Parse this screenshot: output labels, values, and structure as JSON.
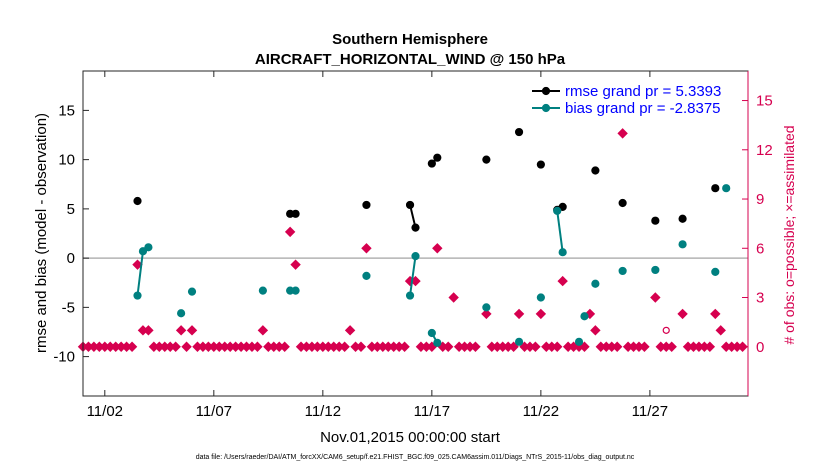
{
  "chart_data": {
    "type": "scatter",
    "title": "Southern Hemisphere",
    "subtitle": "AIRCRAFT_HORIZONTAL_WIND @ 150 hPa",
    "xlabel": "Nov.01,2015 00:00:00 start",
    "ylabel": "rmse and bias (model - observation)",
    "y2label": "# of obs: o=possible; ×=assimilated",
    "footnote": "data file: /Users/raeder/DAI/ATM_forcXX/CAM6_setup/f.e21.FHIST_BGC.f09_025.CAM6assim.011/Diags_NTrS_2015-11/obs_diag_output.nc",
    "xlim": [
      1,
      31.5
    ],
    "ylim": [
      -14,
      19
    ],
    "y2lim": [
      -3,
      16.8
    ],
    "x_tick_labels": [
      "11/02",
      "11/07",
      "11/12",
      "11/17",
      "11/22",
      "11/27"
    ],
    "x_tick_values": [
      2,
      7,
      12,
      17,
      22,
      27
    ],
    "y_tick_values": [
      -10,
      -5,
      0,
      5,
      10,
      15
    ],
    "y2_tick_values": [
      0,
      3,
      6,
      9,
      12,
      15
    ],
    "grid": false,
    "legend_position": "top-right",
    "colors": {
      "rmse": "#000000",
      "bias": "#008080",
      "obs": "#d6004f",
      "zero_line": "#b3b3b3"
    },
    "series": [
      {
        "name": "rmse grand pr = 5.3393",
        "role": "rmse",
        "segments": [
          [
            [
              3.5,
              5.8
            ]
          ],
          [
            [
              10.5,
              4.5
            ],
            [
              10.75,
              4.5
            ]
          ],
          [
            [
              14.0,
              5.4
            ]
          ],
          [
            [
              16.0,
              5.4
            ],
            [
              16.25,
              3.1
            ]
          ],
          [
            [
              17.0,
              9.6
            ],
            [
              17.25,
              10.2
            ]
          ],
          [
            [
              19.5,
              10.0
            ]
          ],
          [
            [
              21.0,
              12.8
            ]
          ],
          [
            [
              22.0,
              9.5
            ]
          ],
          [
            [
              22.75,
              4.9
            ],
            [
              23.0,
              5.2
            ]
          ],
          [
            [
              24.5,
              8.9
            ]
          ],
          [
            [
              25.75,
              5.6
            ]
          ],
          [
            [
              27.25,
              3.8
            ]
          ],
          [
            [
              28.5,
              4.0
            ]
          ],
          [
            [
              30.0,
              7.1
            ]
          ]
        ]
      },
      {
        "name": "bias grand pr = -2.8375",
        "role": "bias",
        "segments": [
          [
            [
              3.5,
              -3.8
            ],
            [
              3.75,
              0.7
            ],
            [
              4.0,
              1.1
            ]
          ],
          [
            [
              5.5,
              -5.6
            ]
          ],
          [
            [
              6.0,
              -3.4
            ]
          ],
          [
            [
              9.25,
              -3.3
            ]
          ],
          [
            [
              10.5,
              -3.3
            ],
            [
              10.75,
              -3.3
            ]
          ],
          [
            [
              14.0,
              -1.8
            ]
          ],
          [
            [
              16.0,
              -3.8
            ],
            [
              16.25,
              0.2
            ]
          ],
          [
            [
              17.0,
              -7.6
            ],
            [
              17.25,
              -8.6
            ]
          ],
          [
            [
              19.5,
              -5.0
            ]
          ],
          [
            [
              21.0,
              -8.5
            ]
          ],
          [
            [
              22.0,
              -4.0
            ]
          ],
          [
            [
              22.75,
              4.8
            ],
            [
              23.0,
              0.6
            ]
          ],
          [
            [
              23.75,
              -8.5
            ]
          ],
          [
            [
              24.0,
              -5.9
            ]
          ],
          [
            [
              24.5,
              -2.6
            ]
          ],
          [
            [
              25.75,
              -1.3
            ]
          ],
          [
            [
              27.25,
              -1.2
            ]
          ],
          [
            [
              28.5,
              1.4
            ]
          ],
          [
            [
              30.0,
              -1.4
            ]
          ],
          [
            [
              30.5,
              7.1
            ]
          ]
        ]
      }
    ],
    "obs_counts": {
      "name": "# of obs",
      "assimilated": [
        [
          1,
          0
        ],
        [
          1.25,
          0
        ],
        [
          1.5,
          0
        ],
        [
          1.75,
          0
        ],
        [
          2,
          0
        ],
        [
          2.25,
          0
        ],
        [
          2.5,
          0
        ],
        [
          2.75,
          0
        ],
        [
          3,
          0
        ],
        [
          3.25,
          0
        ],
        [
          3.5,
          5
        ],
        [
          3.75,
          1
        ],
        [
          4,
          1
        ],
        [
          4.25,
          0
        ],
        [
          4.5,
          0
        ],
        [
          4.75,
          0
        ],
        [
          5,
          0
        ],
        [
          5.25,
          0
        ],
        [
          5.5,
          1
        ],
        [
          5.75,
          0
        ],
        [
          6,
          1
        ],
        [
          6.25,
          0
        ],
        [
          6.5,
          0
        ],
        [
          6.75,
          0
        ],
        [
          7,
          0
        ],
        [
          7.25,
          0
        ],
        [
          7.5,
          0
        ],
        [
          7.75,
          0
        ],
        [
          8,
          0
        ],
        [
          8.25,
          0
        ],
        [
          8.5,
          0
        ],
        [
          8.75,
          0
        ],
        [
          9,
          0
        ],
        [
          9.25,
          1
        ],
        [
          9.5,
          0
        ],
        [
          9.75,
          0
        ],
        [
          10,
          0
        ],
        [
          10.25,
          0
        ],
        [
          10.5,
          7
        ],
        [
          10.75,
          5
        ],
        [
          11,
          0
        ],
        [
          11.25,
          0
        ],
        [
          11.5,
          0
        ],
        [
          11.75,
          0
        ],
        [
          12,
          0
        ],
        [
          12.25,
          0
        ],
        [
          12.5,
          0
        ],
        [
          12.75,
          0
        ],
        [
          13,
          0
        ],
        [
          13.25,
          1
        ],
        [
          13.5,
          0
        ],
        [
          13.75,
          0
        ],
        [
          14,
          6
        ],
        [
          14.25,
          0
        ],
        [
          14.5,
          0
        ],
        [
          14.75,
          0
        ],
        [
          15,
          0
        ],
        [
          15.25,
          0
        ],
        [
          15.5,
          0
        ],
        [
          15.75,
          0
        ],
        [
          16,
          4
        ],
        [
          16.25,
          4
        ],
        [
          16.5,
          0
        ],
        [
          16.75,
          0
        ],
        [
          17,
          0
        ],
        [
          17.25,
          6
        ],
        [
          17.5,
          0
        ],
        [
          17.75,
          0
        ],
        [
          18,
          3
        ],
        [
          18.25,
          0
        ],
        [
          18.5,
          0
        ],
        [
          18.75,
          0
        ],
        [
          19,
          0
        ],
        [
          19.5,
          2
        ],
        [
          19.75,
          0
        ],
        [
          20,
          0
        ],
        [
          20.25,
          0
        ],
        [
          20.5,
          0
        ],
        [
          20.75,
          0
        ],
        [
          21,
          2
        ],
        [
          21.25,
          0
        ],
        [
          21.5,
          0
        ],
        [
          21.75,
          0
        ],
        [
          22,
          2
        ],
        [
          22.25,
          0
        ],
        [
          22.5,
          0
        ],
        [
          22.75,
          0
        ],
        [
          23,
          4
        ],
        [
          23.25,
          0
        ],
        [
          23.5,
          0
        ],
        [
          23.75,
          0
        ],
        [
          24,
          0
        ],
        [
          24.25,
          2
        ],
        [
          24.5,
          1
        ],
        [
          24.75,
          0
        ],
        [
          25,
          0
        ],
        [
          25.25,
          0
        ],
        [
          25.5,
          0
        ],
        [
          25.75,
          13
        ],
        [
          26,
          0
        ],
        [
          26.25,
          0
        ],
        [
          26.5,
          0
        ],
        [
          26.75,
          0
        ],
        [
          27.25,
          3
        ],
        [
          27.5,
          0
        ],
        [
          27.75,
          0
        ],
        [
          28,
          0
        ],
        [
          28.5,
          2
        ],
        [
          28.75,
          0
        ],
        [
          29,
          0
        ],
        [
          29.25,
          0
        ],
        [
          29.5,
          0
        ],
        [
          29.75,
          0
        ],
        [
          30,
          2
        ],
        [
          30.25,
          1
        ],
        [
          30.5,
          0
        ],
        [
          30.75,
          0
        ],
        [
          31,
          0
        ],
        [
          31.25,
          0
        ]
      ],
      "possible": [
        [
          27.75,
          1
        ]
      ]
    }
  }
}
